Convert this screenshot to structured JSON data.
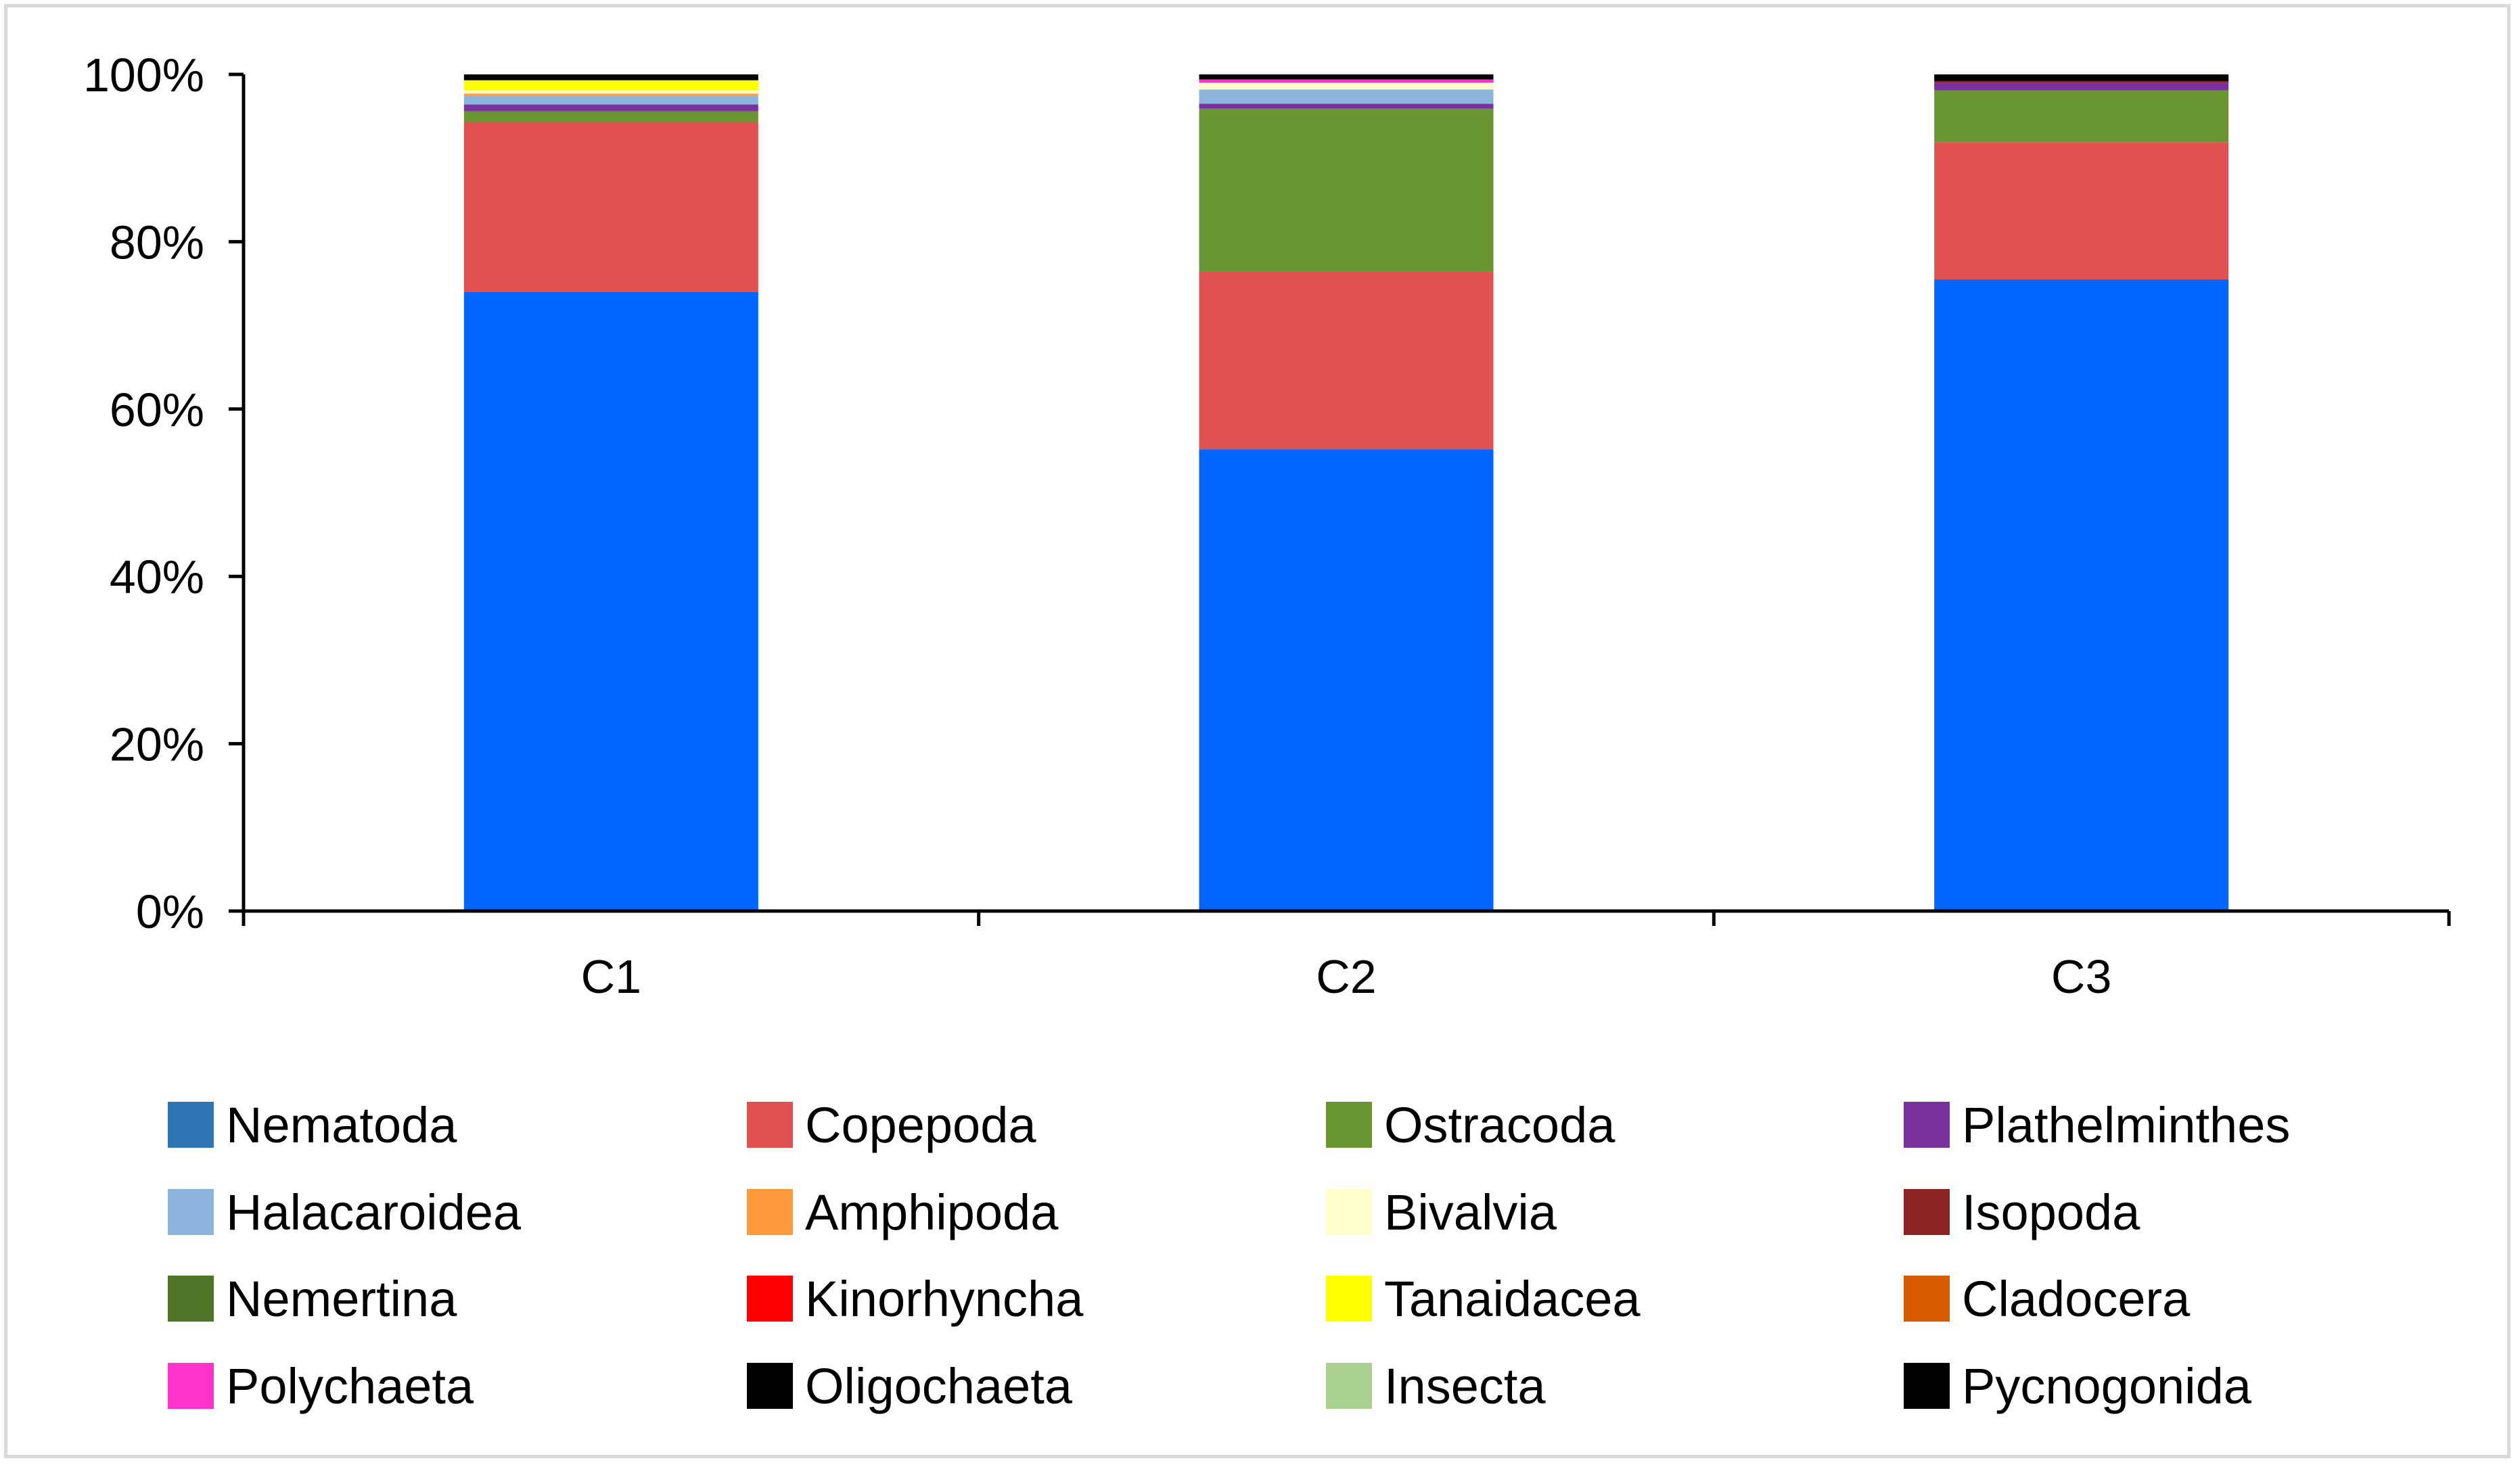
{
  "chart_data": {
    "type": "bar",
    "stacked": true,
    "normalized": true,
    "categories": [
      "C1",
      "C2",
      "C3"
    ],
    "ylim": [
      0,
      100
    ],
    "yticks": [
      0,
      20,
      40,
      60,
      80,
      100
    ],
    "ytick_labels": [
      "0%",
      "20%",
      "40%",
      "60%",
      "80%",
      "100%"
    ],
    "grid": false,
    "legend_position": "bottom",
    "series": [
      {
        "name": "Nematoda",
        "legend_color": "#2e75b6",
        "bar_color": "#0066ff",
        "values": [
          74.0,
          55.2,
          75.5
        ]
      },
      {
        "name": "Copepoda",
        "legend_color": "#e15150",
        "bar_color": "#e15150",
        "values": [
          20.3,
          21.2,
          16.4
        ]
      },
      {
        "name": "Ostracoda",
        "legend_color": "#6a9632",
        "bar_color": "#6a9632",
        "values": [
          1.3,
          19.5,
          6.2
        ]
      },
      {
        "name": "Plathelminthes",
        "legend_color": "#7b30a0",
        "bar_color": "#7b30a0",
        "values": [
          0.8,
          0.6,
          0.9
        ]
      },
      {
        "name": "Halacaroidea",
        "legend_color": "#8db4dc",
        "bar_color": "#8db4dc",
        "values": [
          1.0,
          1.7,
          0.0
        ]
      },
      {
        "name": "Amphipoda",
        "legend_color": "#ff9a3c",
        "bar_color": "#ff9a3c",
        "values": [
          0.3,
          0.0,
          0.0
        ]
      },
      {
        "name": "Bivalvia",
        "legend_color": "#ffffcc",
        "bar_color": "#ffffcc",
        "values": [
          0.4,
          0.8,
          0.0
        ]
      },
      {
        "name": "Isopoda",
        "legend_color": "#8b2323",
        "bar_color": "#8b2323",
        "values": [
          0.0,
          0.0,
          0.2
        ]
      },
      {
        "name": "Nemertina",
        "legend_color": "#4e7426",
        "bar_color": "#4e7426",
        "values": [
          0.0,
          0.0,
          0.0
        ]
      },
      {
        "name": "Kinorhyncha",
        "legend_color": "#ff0000",
        "bar_color": "#ff0000",
        "values": [
          0.0,
          0.0,
          0.0
        ]
      },
      {
        "name": "Tanaidacea",
        "legend_color": "#ffff00",
        "bar_color": "#ffff00",
        "values": [
          1.2,
          0.0,
          0.0
        ]
      },
      {
        "name": "Cladocera",
        "legend_color": "#d95b00",
        "bar_color": "#d95b00",
        "values": [
          0.0,
          0.0,
          0.0
        ]
      },
      {
        "name": "Polychaeta",
        "legend_color": "#ff33cc",
        "bar_color": "#ff33cc",
        "values": [
          0.0,
          0.4,
          0.0
        ]
      },
      {
        "name": "Oligochaeta",
        "legend_color": "#000000",
        "bar_color": "#000000",
        "values": [
          0.7,
          0.6,
          0.8
        ]
      },
      {
        "name": "Insecta",
        "legend_color": "#a9d08e",
        "bar_color": "#a9d08e",
        "values": [
          0.0,
          0.0,
          0.0
        ]
      },
      {
        "name": "Pycnogonida",
        "legend_color": "#000000",
        "bar_color": "#000000",
        "values": [
          0.0,
          0.0,
          0.0
        ]
      }
    ]
  }
}
